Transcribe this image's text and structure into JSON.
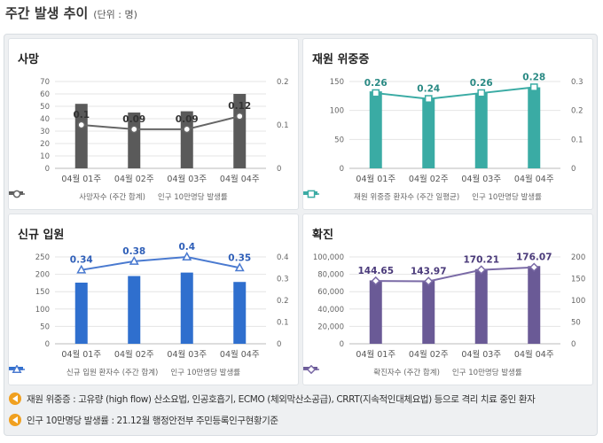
{
  "header": {
    "title": "주간 발생 추이",
    "unit": "(단위 : 명)"
  },
  "chart_data": [
    {
      "type": "bar",
      "title": "사망",
      "categories": [
        "04월 01주",
        "04월 02주",
        "04월 03주",
        "04월 04주"
      ],
      "series": [
        {
          "name": "사망자수 (주간 합계)",
          "type": "bar",
          "axis": "left",
          "values": [
            52,
            45,
            46,
            60
          ]
        },
        {
          "name": "인구 10만명당 발생률",
          "type": "line",
          "axis": "right",
          "values": [
            0.1,
            0.09,
            0.09,
            0.12
          ],
          "labels": [
            "0.1",
            "0.09",
            "0.09",
            "0.12"
          ]
        }
      ],
      "ylim": [
        0,
        70
      ],
      "yticks": [
        "0",
        "10",
        "20",
        "30",
        "40",
        "50",
        "60",
        "70"
      ],
      "y2lim": [
        0,
        0.2
      ],
      "y2ticks": [
        "0",
        "0.1",
        "0.2"
      ],
      "bar_color": "#5a5a5a",
      "line_color": "#666666",
      "marker": "circle",
      "label_color": "#333333"
    },
    {
      "type": "bar",
      "title": "재원 위중증",
      "categories": [
        "04월 01주",
        "04월 02주",
        "04월 03주",
        "04월 04주"
      ],
      "series": [
        {
          "name": "재원 위중증 환자수 (주간 일평균)",
          "type": "bar",
          "axis": "left",
          "values": [
            133,
            121,
            130,
            140
          ]
        },
        {
          "name": "인구 10만명당 발생률",
          "type": "line",
          "axis": "right",
          "values": [
            0.26,
            0.24,
            0.26,
            0.28
          ],
          "labels": [
            "0.26",
            "0.24",
            "0.26",
            "0.28"
          ]
        }
      ],
      "ylim": [
        0,
        150
      ],
      "yticks": [
        "0",
        "50",
        "100",
        "150"
      ],
      "y2lim": [
        0,
        0.3
      ],
      "y2ticks": [
        "0",
        "0.1",
        "0.2",
        "0.3"
      ],
      "bar_color": "#3aaba4",
      "line_color": "#3aaba4",
      "marker": "square",
      "label_color": "#2a8a84"
    },
    {
      "type": "bar",
      "title": "신규 입원",
      "categories": [
        "04월 01주",
        "04월 02주",
        "04월 03주",
        "04월 04주"
      ],
      "series": [
        {
          "name": "신규 입원 환자수 (주간 합계)",
          "type": "bar",
          "axis": "left",
          "values": [
            176,
            195,
            205,
            178
          ]
        },
        {
          "name": "인구 10만명당 발생률",
          "type": "line",
          "axis": "right",
          "values": [
            0.34,
            0.38,
            0.4,
            0.35
          ],
          "labels": [
            "0.34",
            "0.38",
            "0.4",
            "0.35"
          ]
        }
      ],
      "ylim": [
        0,
        250
      ],
      "yticks": [
        "0",
        "50",
        "100",
        "150",
        "200",
        "250"
      ],
      "y2lim": [
        0,
        0.4
      ],
      "y2ticks": [
        "0",
        "0.1",
        "0.2",
        "0.3",
        "0.4"
      ],
      "bar_color": "#2f6fce",
      "line_color": "#4a7ad0",
      "marker": "triangle",
      "label_color": "#2f5fb8"
    },
    {
      "type": "bar",
      "title": "확진",
      "categories": [
        "04월 01주",
        "04월 02주",
        "04월 03주",
        "04월 04주"
      ],
      "series": [
        {
          "name": "확진자수 (주간 합계)",
          "type": "bar",
          "axis": "left",
          "values": [
            73000,
            72500,
            86000,
            89500
          ]
        },
        {
          "name": "인구 10만명당 발생률",
          "type": "line",
          "axis": "right",
          "values": [
            144.65,
            143.97,
            170.21,
            176.07
          ],
          "labels": [
            "144.65",
            "143.97",
            "170.21",
            "176.07"
          ]
        }
      ],
      "ylim": [
        0,
        100000
      ],
      "yticks": [
        "0",
        "20,000",
        "40,000",
        "60,000",
        "80,000",
        "100,000"
      ],
      "y2lim": [
        0,
        200
      ],
      "y2ticks": [
        "0",
        "50",
        "100",
        "150",
        "200"
      ],
      "bar_color": "#6a5a96",
      "line_color": "#7a6aa6",
      "marker": "diamond",
      "label_color": "#4a3a7a"
    }
  ],
  "notes": [
    "재원 위중증 : 고유량 (high flow) 산소요법, 인공호흡기, ECMO (체외막산소공급), CRRT(지속적인대체요법) 등으로 격리 치료 중인 환자",
    "인구 10만명당 발생률 : 21.12월 행정안전부 주민등록인구현황기준"
  ],
  "colors": {
    "note_icon": "#f0a020"
  }
}
